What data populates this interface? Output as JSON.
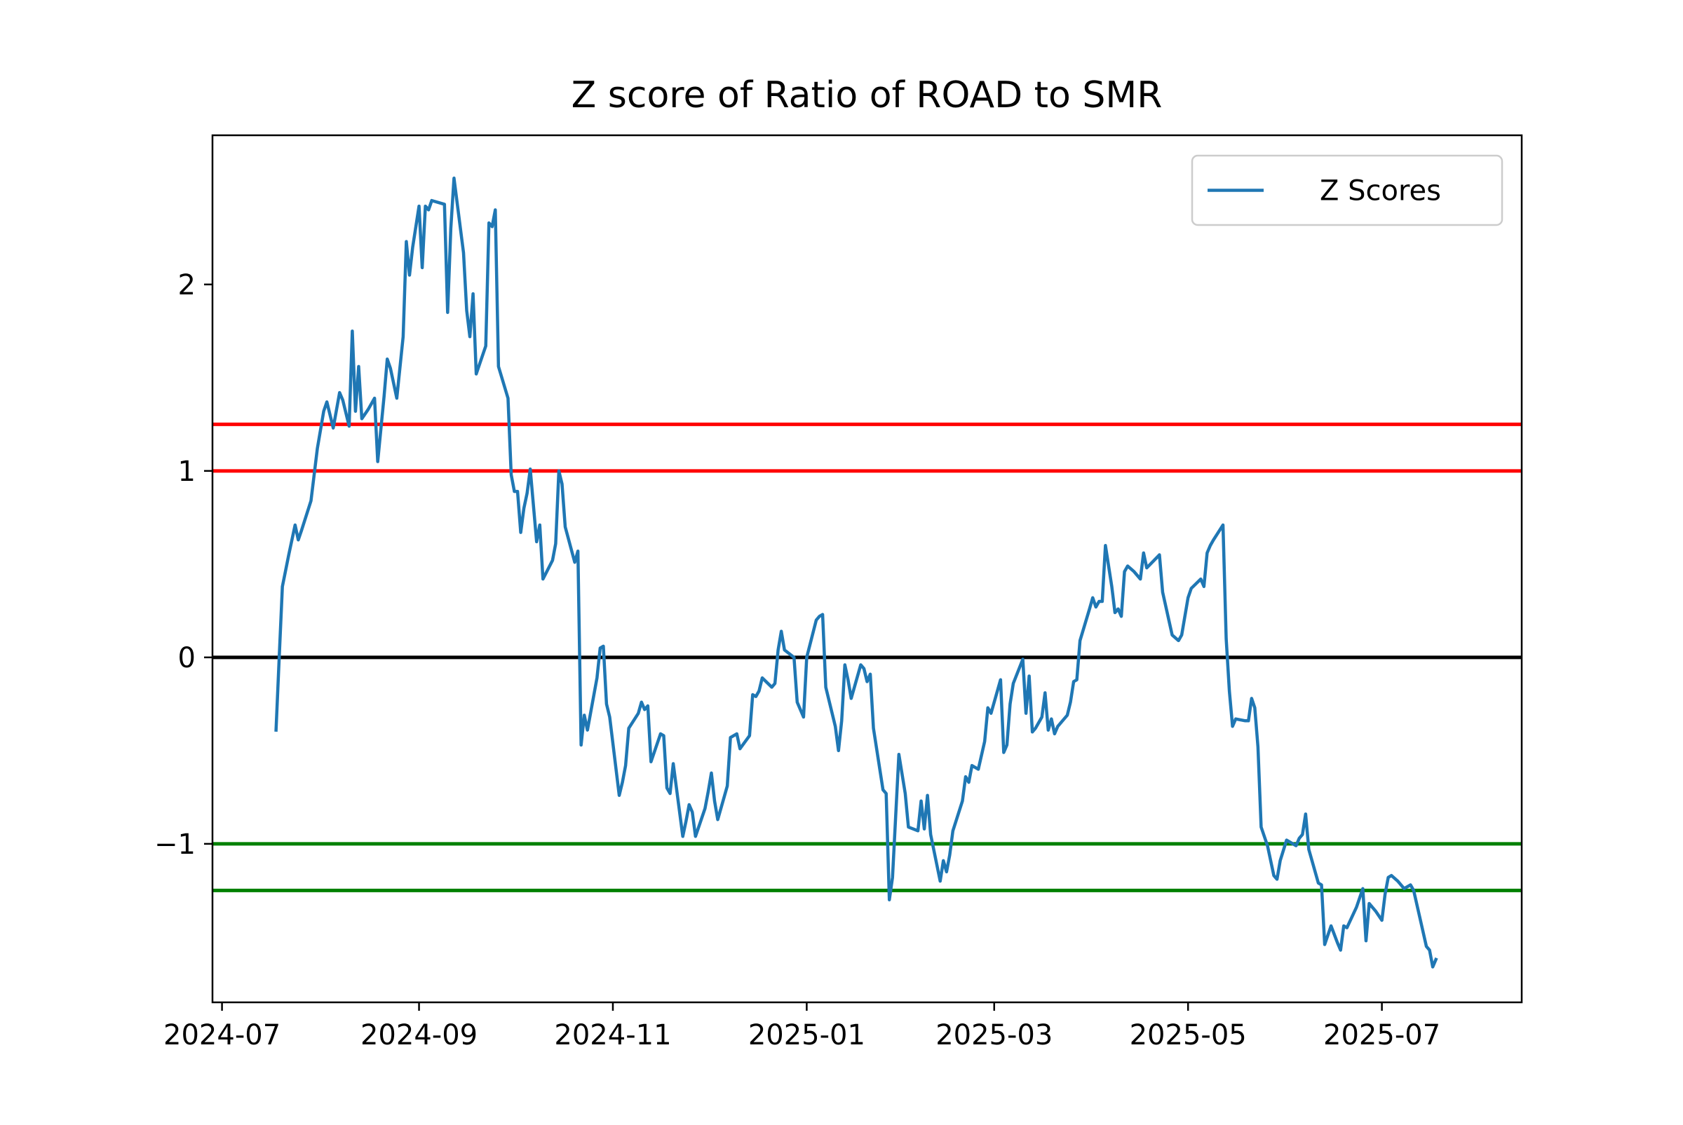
{
  "chart_data": {
    "type": "line",
    "title": "Z score of Ratio of ROAD to SMR",
    "xlabel": "",
    "ylabel": "",
    "x_ticks": [
      "2024-07",
      "2024-09",
      "2024-11",
      "2025-01",
      "2025-03",
      "2025-05",
      "2025-07"
    ],
    "y_ticks": [
      -1,
      0,
      1,
      2
    ],
    "y_tick_labels": [
      "−1",
      "0",
      "1",
      "2"
    ],
    "xlim": [
      "2024-06-28",
      "2025-08-14"
    ],
    "ylim": [
      -1.85,
      2.8
    ],
    "grid": false,
    "legend": {
      "position": "top-right",
      "entries": [
        "Z Scores"
      ]
    },
    "series": [
      {
        "name": "Z Scores",
        "color": "#1f77b4",
        "points": [
          [
            "2024-07-18",
            -0.39
          ],
          [
            "2024-07-19",
            0.0
          ],
          [
            "2024-07-20",
            0.38
          ],
          [
            "2024-07-22",
            0.55
          ],
          [
            "2024-07-24",
            0.71
          ],
          [
            "2024-07-25",
            0.63
          ],
          [
            "2024-07-26",
            0.68
          ],
          [
            "2024-07-29",
            0.84
          ],
          [
            "2024-07-31",
            1.12
          ],
          [
            "2024-08-02",
            1.32
          ],
          [
            "2024-08-03",
            1.37
          ],
          [
            "2024-08-05",
            1.23
          ],
          [
            "2024-08-07",
            1.42
          ],
          [
            "2024-08-08",
            1.38
          ],
          [
            "2024-08-10",
            1.24
          ],
          [
            "2024-08-11",
            1.75
          ],
          [
            "2024-08-12",
            1.32
          ],
          [
            "2024-08-13",
            1.56
          ],
          [
            "2024-08-14",
            1.28
          ],
          [
            "2024-08-16",
            1.33
          ],
          [
            "2024-08-18",
            1.39
          ],
          [
            "2024-08-19",
            1.05
          ],
          [
            "2024-08-21",
            1.4
          ],
          [
            "2024-08-22",
            1.6
          ],
          [
            "2024-08-23",
            1.55
          ],
          [
            "2024-08-25",
            1.39
          ],
          [
            "2024-08-27",
            1.72
          ],
          [
            "2024-08-28",
            2.23
          ],
          [
            "2024-08-29",
            2.05
          ],
          [
            "2024-08-30",
            2.2
          ],
          [
            "2024-09-01",
            2.42
          ],
          [
            "2024-09-02",
            2.09
          ],
          [
            "2024-09-03",
            2.42
          ],
          [
            "2024-09-04",
            2.4
          ],
          [
            "2024-09-05",
            2.45
          ],
          [
            "2024-09-09",
            2.43
          ],
          [
            "2024-09-10",
            1.85
          ],
          [
            "2024-09-11",
            2.3
          ],
          [
            "2024-09-12",
            2.57
          ],
          [
            "2024-09-15",
            2.17
          ],
          [
            "2024-09-16",
            1.86
          ],
          [
            "2024-09-17",
            1.72
          ],
          [
            "2024-09-18",
            1.95
          ],
          [
            "2024-09-19",
            1.52
          ],
          [
            "2024-09-22",
            1.67
          ],
          [
            "2024-09-23",
            2.33
          ],
          [
            "2024-09-24",
            2.31
          ],
          [
            "2024-09-25",
            2.4
          ],
          [
            "2024-09-26",
            1.56
          ],
          [
            "2024-09-29",
            1.39
          ],
          [
            "2024-09-30",
            0.98
          ],
          [
            "2024-10-01",
            0.89
          ],
          [
            "2024-10-02",
            0.89
          ],
          [
            "2024-10-03",
            0.67
          ],
          [
            "2024-10-04",
            0.8
          ],
          [
            "2024-10-05",
            0.88
          ],
          [
            "2024-10-06",
            1.01
          ],
          [
            "2024-10-08",
            0.62
          ],
          [
            "2024-10-09",
            0.71
          ],
          [
            "2024-10-10",
            0.42
          ],
          [
            "2024-10-13",
            0.52
          ],
          [
            "2024-10-14",
            0.61
          ],
          [
            "2024-10-15",
            1.0
          ],
          [
            "2024-10-16",
            0.93
          ],
          [
            "2024-10-17",
            0.7
          ],
          [
            "2024-10-20",
            0.51
          ],
          [
            "2024-10-21",
            0.57
          ],
          [
            "2024-10-22",
            -0.47
          ],
          [
            "2024-10-23",
            -0.31
          ],
          [
            "2024-10-24",
            -0.39
          ],
          [
            "2024-10-27",
            -0.11
          ],
          [
            "2024-10-28",
            0.05
          ],
          [
            "2024-10-29",
            0.06
          ],
          [
            "2024-10-30",
            -0.25
          ],
          [
            "2024-10-31",
            -0.32
          ],
          [
            "2024-11-03",
            -0.74
          ],
          [
            "2024-11-04",
            -0.67
          ],
          [
            "2024-11-05",
            -0.58
          ],
          [
            "2024-11-06",
            -0.38
          ],
          [
            "2024-11-09",
            -0.3
          ],
          [
            "2024-11-10",
            -0.24
          ],
          [
            "2024-11-11",
            -0.28
          ],
          [
            "2024-11-12",
            -0.26
          ],
          [
            "2024-11-13",
            -0.56
          ],
          [
            "2024-11-16",
            -0.41
          ],
          [
            "2024-11-17",
            -0.42
          ],
          [
            "2024-11-18",
            -0.7
          ],
          [
            "2024-11-19",
            -0.73
          ],
          [
            "2024-11-20",
            -0.57
          ],
          [
            "2024-11-23",
            -0.96
          ],
          [
            "2024-11-24",
            -0.88
          ],
          [
            "2024-11-25",
            -0.79
          ],
          [
            "2024-11-26",
            -0.83
          ],
          [
            "2024-11-27",
            -0.96
          ],
          [
            "2024-11-30",
            -0.81
          ],
          [
            "2024-12-01",
            -0.72
          ],
          [
            "2024-12-02",
            -0.62
          ],
          [
            "2024-12-03",
            -0.77
          ],
          [
            "2024-12-04",
            -0.87
          ],
          [
            "2024-12-07",
            -0.69
          ],
          [
            "2024-12-08",
            -0.43
          ],
          [
            "2024-12-09",
            -0.42
          ],
          [
            "2024-12-10",
            -0.41
          ],
          [
            "2024-12-11",
            -0.49
          ],
          [
            "2024-12-14",
            -0.42
          ],
          [
            "2024-12-15",
            -0.2
          ],
          [
            "2024-12-16",
            -0.21
          ],
          [
            "2024-12-17",
            -0.18
          ],
          [
            "2024-12-18",
            -0.11
          ],
          [
            "2024-12-21",
            -0.16
          ],
          [
            "2024-12-22",
            -0.14
          ],
          [
            "2024-12-23",
            0.04
          ],
          [
            "2024-12-24",
            0.14
          ],
          [
            "2024-12-25",
            0.04
          ],
          [
            "2024-12-28",
            0.0
          ],
          [
            "2024-12-29",
            -0.24
          ],
          [
            "2024-12-30",
            -0.28
          ],
          [
            "2024-12-31",
            -0.32
          ],
          [
            "2025-01-01",
            0.0
          ],
          [
            "2025-01-04",
            0.2
          ],
          [
            "2025-01-05",
            0.22
          ],
          [
            "2025-01-06",
            0.23
          ],
          [
            "2025-01-07",
            -0.16
          ],
          [
            "2025-01-10",
            -0.37
          ],
          [
            "2025-01-11",
            -0.5
          ],
          [
            "2025-01-12",
            -0.34
          ],
          [
            "2025-01-13",
            -0.04
          ],
          [
            "2025-01-14",
            -0.12
          ],
          [
            "2025-01-15",
            -0.22
          ],
          [
            "2025-01-18",
            -0.04
          ],
          [
            "2025-01-19",
            -0.06
          ],
          [
            "2025-01-20",
            -0.13
          ],
          [
            "2025-01-21",
            -0.09
          ],
          [
            "2025-01-22",
            -0.38
          ],
          [
            "2025-01-25",
            -0.71
          ],
          [
            "2025-01-26",
            -0.73
          ],
          [
            "2025-01-27",
            -1.3
          ],
          [
            "2025-01-28",
            -1.18
          ],
          [
            "2025-01-29",
            -0.85
          ],
          [
            "2025-01-30",
            -0.52
          ],
          [
            "2025-02-01",
            -0.73
          ],
          [
            "2025-02-02",
            -0.91
          ],
          [
            "2025-02-05",
            -0.93
          ],
          [
            "2025-02-06",
            -0.77
          ],
          [
            "2025-02-07",
            -0.92
          ],
          [
            "2025-02-08",
            -0.74
          ],
          [
            "2025-02-09",
            -0.95
          ],
          [
            "2025-02-12",
            -1.2
          ],
          [
            "2025-02-13",
            -1.09
          ],
          [
            "2025-02-14",
            -1.15
          ],
          [
            "2025-02-15",
            -1.06
          ],
          [
            "2025-02-16",
            -0.93
          ],
          [
            "2025-02-19",
            -0.77
          ],
          [
            "2025-02-20",
            -0.64
          ],
          [
            "2025-02-21",
            -0.67
          ],
          [
            "2025-02-22",
            -0.58
          ],
          [
            "2025-02-24",
            -0.6
          ],
          [
            "2025-02-26",
            -0.45
          ],
          [
            "2025-02-27",
            -0.27
          ],
          [
            "2025-02-28",
            -0.3
          ],
          [
            "2025-03-03",
            -0.12
          ],
          [
            "2025-03-04",
            -0.51
          ],
          [
            "2025-03-05",
            -0.47
          ],
          [
            "2025-03-06",
            -0.25
          ],
          [
            "2025-03-07",
            -0.14
          ],
          [
            "2025-03-10",
            -0.01
          ],
          [
            "2025-03-11",
            -0.3
          ],
          [
            "2025-03-12",
            -0.1
          ],
          [
            "2025-03-13",
            -0.4
          ],
          [
            "2025-03-14",
            -0.38
          ],
          [
            "2025-03-16",
            -0.32
          ],
          [
            "2025-03-17",
            -0.19
          ],
          [
            "2025-03-18",
            -0.39
          ],
          [
            "2025-03-19",
            -0.33
          ],
          [
            "2025-03-20",
            -0.41
          ],
          [
            "2025-03-21",
            -0.37
          ],
          [
            "2025-03-24",
            -0.31
          ],
          [
            "2025-03-25",
            -0.24
          ],
          [
            "2025-03-26",
            -0.13
          ],
          [
            "2025-03-27",
            -0.12
          ],
          [
            "2025-03-28",
            0.09
          ],
          [
            "2025-03-31",
            0.26
          ],
          [
            "2025-04-01",
            0.32
          ],
          [
            "2025-04-02",
            0.27
          ],
          [
            "2025-04-03",
            0.3
          ],
          [
            "2025-04-04",
            0.3
          ],
          [
            "2025-04-05",
            0.6
          ],
          [
            "2025-04-07",
            0.38
          ],
          [
            "2025-04-08",
            0.24
          ],
          [
            "2025-04-09",
            0.26
          ],
          [
            "2025-04-10",
            0.22
          ],
          [
            "2025-04-11",
            0.46
          ],
          [
            "2025-04-12",
            0.49
          ],
          [
            "2025-04-14",
            0.46
          ],
          [
            "2025-04-16",
            0.42
          ],
          [
            "2025-04-17",
            0.56
          ],
          [
            "2025-04-18",
            0.48
          ],
          [
            "2025-04-22",
            0.55
          ],
          [
            "2025-04-23",
            0.35
          ],
          [
            "2025-04-26",
            0.12
          ],
          [
            "2025-04-28",
            0.09
          ],
          [
            "2025-04-29",
            0.12
          ],
          [
            "2025-05-01",
            0.32
          ],
          [
            "2025-05-02",
            0.37
          ],
          [
            "2025-05-05",
            0.42
          ],
          [
            "2025-05-06",
            0.38
          ],
          [
            "2025-05-07",
            0.56
          ],
          [
            "2025-05-08",
            0.6
          ],
          [
            "2025-05-09",
            0.63
          ],
          [
            "2025-05-12",
            0.71
          ],
          [
            "2025-05-13",
            0.1
          ],
          [
            "2025-05-14",
            -0.18
          ],
          [
            "2025-05-15",
            -0.37
          ],
          [
            "2025-05-16",
            -0.33
          ],
          [
            "2025-05-19",
            -0.34
          ],
          [
            "2025-05-20",
            -0.34
          ],
          [
            "2025-05-21",
            -0.22
          ],
          [
            "2025-05-22",
            -0.27
          ],
          [
            "2025-05-23",
            -0.48
          ],
          [
            "2025-05-24",
            -0.91
          ],
          [
            "2025-05-26",
            -1.01
          ],
          [
            "2025-05-28",
            -1.17
          ],
          [
            "2025-05-29",
            -1.19
          ],
          [
            "2025-05-30",
            -1.09
          ],
          [
            "2025-06-01",
            -0.98
          ],
          [
            "2025-06-02",
            -0.99
          ],
          [
            "2025-06-04",
            -1.01
          ],
          [
            "2025-06-05",
            -0.97
          ],
          [
            "2025-06-06",
            -0.95
          ],
          [
            "2025-06-07",
            -0.84
          ],
          [
            "2025-06-08",
            -1.03
          ],
          [
            "2025-06-11",
            -1.21
          ],
          [
            "2025-06-12",
            -1.22
          ],
          [
            "2025-06-13",
            -1.54
          ],
          [
            "2025-06-15",
            -1.44
          ],
          [
            "2025-06-17",
            -1.53
          ],
          [
            "2025-06-18",
            -1.57
          ],
          [
            "2025-06-19",
            -1.44
          ],
          [
            "2025-06-20",
            -1.45
          ],
          [
            "2025-06-23",
            -1.34
          ],
          [
            "2025-06-25",
            -1.24
          ],
          [
            "2025-06-26",
            -1.52
          ],
          [
            "2025-06-27",
            -1.32
          ],
          [
            "2025-06-29",
            -1.36
          ],
          [
            "2025-07-01",
            -1.41
          ],
          [
            "2025-07-02",
            -1.27
          ],
          [
            "2025-07-03",
            -1.18
          ],
          [
            "2025-07-04",
            -1.17
          ],
          [
            "2025-07-06",
            -1.2
          ],
          [
            "2025-07-08",
            -1.24
          ],
          [
            "2025-07-10",
            -1.22
          ],
          [
            "2025-07-11",
            -1.25
          ],
          [
            "2025-07-13",
            -1.4
          ],
          [
            "2025-07-15",
            -1.55
          ],
          [
            "2025-07-16",
            -1.57
          ],
          [
            "2025-07-17",
            -1.66
          ],
          [
            "2025-07-18",
            -1.62
          ]
        ]
      }
    ],
    "reference_lines": [
      {
        "y": 1.25,
        "color": "#ff0000"
      },
      {
        "y": 1.0,
        "color": "#ff0000"
      },
      {
        "y": 0.0,
        "color": "#000000"
      },
      {
        "y": -1.0,
        "color": "#008000"
      },
      {
        "y": -1.25,
        "color": "#008000"
      }
    ]
  }
}
